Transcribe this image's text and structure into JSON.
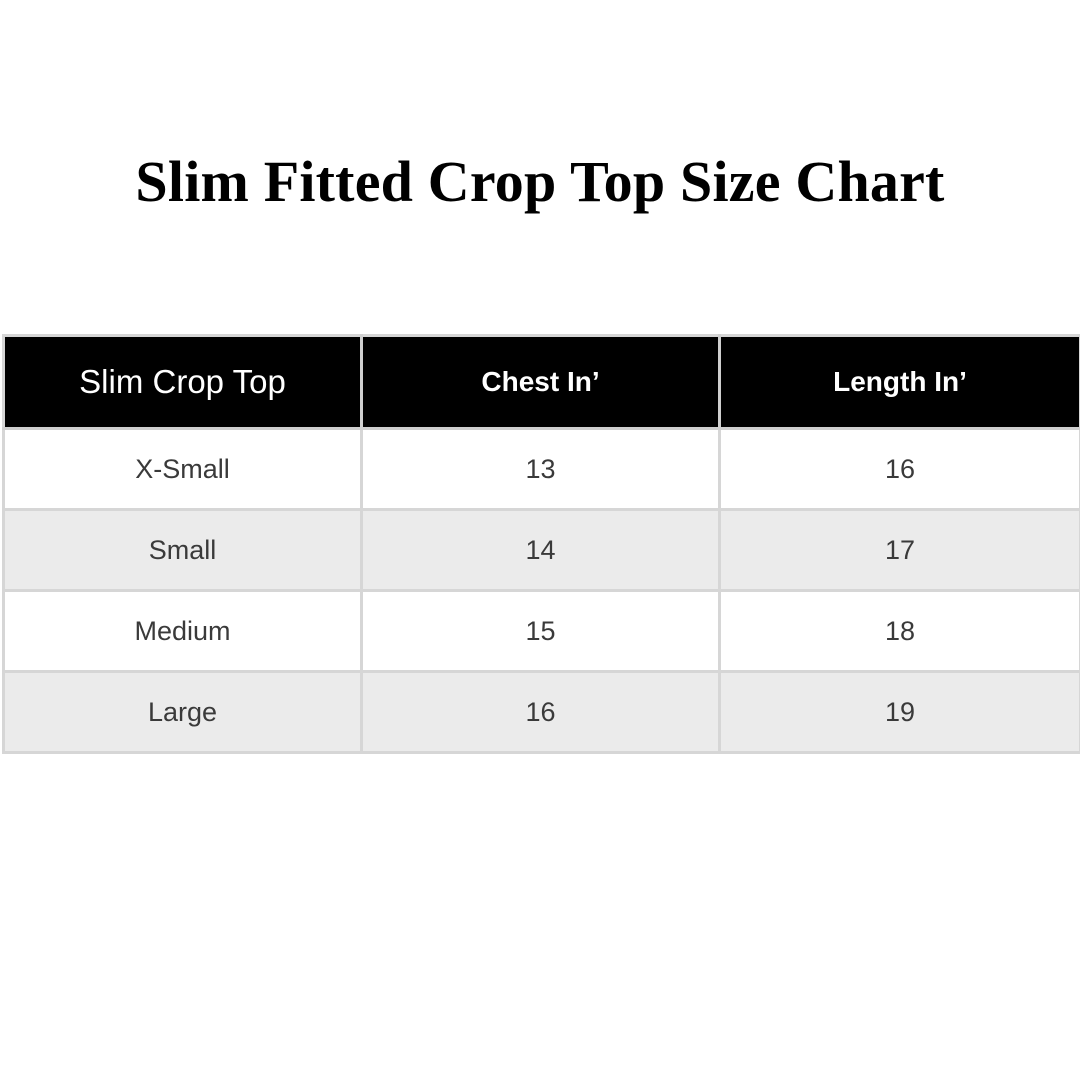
{
  "title": "Slim Fitted Crop Top Size Chart",
  "table": {
    "headers": [
      "Slim Crop Top",
      "Chest In’",
      "Length In’"
    ],
    "rows": [
      [
        "X-Small",
        "13",
        "16"
      ],
      [
        "Small",
        "14",
        "17"
      ],
      [
        "Medium",
        "15",
        "18"
      ],
      [
        "Large",
        "16",
        "19"
      ]
    ]
  },
  "colors": {
    "header_background": "#000000",
    "header_text": "#ffffff",
    "alt_row_background": "#ebebeb",
    "border": "#d6d6d6"
  }
}
